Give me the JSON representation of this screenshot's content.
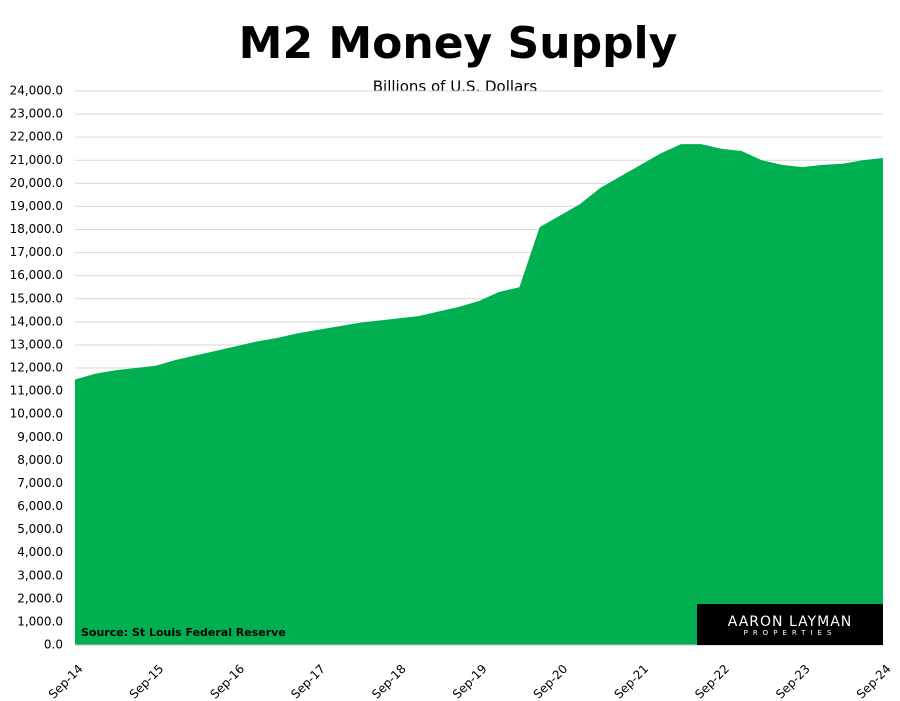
{
  "chart_data": {
    "type": "area",
    "title": "M2 Money Supply",
    "subtitle": "Billions of U.S. Dollars",
    "source": "Source: St Louis Federal Reserve",
    "logo": [
      "AARON LAYMAN",
      "PROPERTIES"
    ],
    "categories": [
      "Sep-14",
      null,
      null,
      null,
      "Sep-15",
      null,
      null,
      null,
      "Sep-16",
      null,
      null,
      null,
      "Sep-17",
      null,
      null,
      null,
      "Sep-18",
      null,
      null,
      null,
      "Sep-19",
      null,
      null,
      null,
      "Sep-20",
      null,
      null,
      null,
      "Sep-21",
      null,
      null,
      null,
      "Sep-22",
      null,
      null,
      null,
      "Sep-23",
      null,
      null,
      null,
      "Sep-24"
    ],
    "values": [
      11500,
      11750,
      11900,
      12000,
      12100,
      12350,
      12550,
      12750,
      12950,
      13150,
      13300,
      13500,
      13650,
      13800,
      13950,
      14050,
      14150,
      14250,
      14450,
      14650,
      14900,
      15300,
      15500,
      18100,
      18600,
      19100,
      19800,
      20300,
      20800,
      21300,
      21700,
      21700,
      21500,
      21400,
      21000,
      20800,
      20700,
      20800,
      20850,
      21000,
      21100
    ],
    "color": "#00b050",
    "ylim": [
      0,
      24000
    ],
    "yticks": [
      {
        "value": 0,
        "label": "0.0"
      },
      {
        "value": 1000,
        "label": "1,000.0"
      },
      {
        "value": 2000,
        "label": "2,000.0"
      },
      {
        "value": 3000,
        "label": "3,000.0"
      },
      {
        "value": 4000,
        "label": "4,000.0"
      },
      {
        "value": 5000,
        "label": "5,000.0"
      },
      {
        "value": 6000,
        "label": "6,000.0"
      },
      {
        "value": 7000,
        "label": "7,000.0"
      },
      {
        "value": 8000,
        "label": "8,000.0"
      },
      {
        "value": 9000,
        "label": "9,000.0"
      },
      {
        "value": 10000,
        "label": "10,000.0"
      },
      {
        "value": 11000,
        "label": "11,000.0"
      },
      {
        "value": 12000,
        "label": "12,000.0"
      },
      {
        "value": 13000,
        "label": "13,000.0"
      },
      {
        "value": 14000,
        "label": "14,000.0"
      },
      {
        "value": 15000,
        "label": "15,000.0"
      },
      {
        "value": 16000,
        "label": "16,000.0"
      },
      {
        "value": 17000,
        "label": "17,000.0"
      },
      {
        "value": 18000,
        "label": "18,000.0"
      },
      {
        "value": 19000,
        "label": "19,000.0"
      },
      {
        "value": 20000,
        "label": "20,000.0"
      },
      {
        "value": 21000,
        "label": "21,000.0"
      },
      {
        "value": 22000,
        "label": "22,000.0"
      },
      {
        "value": 23000,
        "label": "23,000.0"
      },
      {
        "value": 24000,
        "label": "24,000.0"
      }
    ],
    "grid": true
  }
}
